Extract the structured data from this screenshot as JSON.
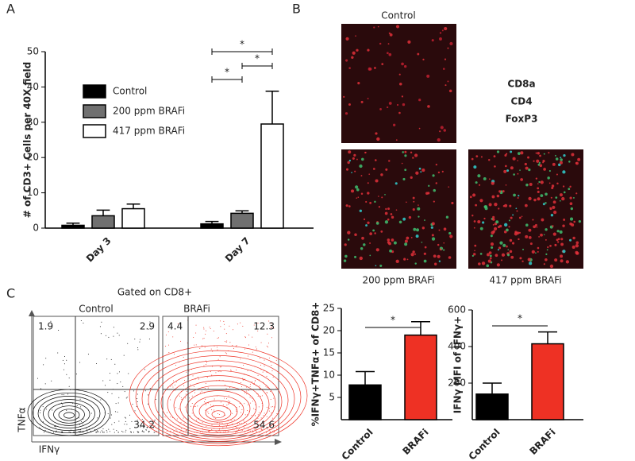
{
  "panel_labels": [
    "A",
    "B",
    "C"
  ],
  "chart_data": [
    {
      "type": "bar",
      "ylabel": "# of CD3+ Cells per 40X field",
      "categories": [
        "Day 3",
        "Day 7"
      ],
      "series": [
        {
          "name": "Control",
          "color": "#000000",
          "values": [
            0.8,
            1.2
          ],
          "errors": [
            0.6,
            0.7
          ]
        },
        {
          "name": "200 ppm BRAFi",
          "color": "#707070",
          "values": [
            3.5,
            4.2
          ],
          "errors": [
            1.6,
            0.7
          ]
        },
        {
          "name": "417 ppm BRAFi",
          "color": "#ffffff",
          "values": [
            5.5,
            29.5
          ],
          "errors": [
            1.3,
            9.3
          ]
        }
      ],
      "ylim": [
        0,
        50
      ],
      "yticks": [
        0,
        10,
        20,
        30,
        40,
        50
      ],
      "annotations": [
        "*",
        "*",
        "*"
      ]
    },
    {
      "type": "bar",
      "ylabel": "%IFNγ+TNFα+ of CD8+",
      "categories": [
        "Control",
        "BRAFi"
      ],
      "colors": [
        "#000000",
        "#ee3124"
      ],
      "values": [
        7.8,
        19
      ],
      "errors": [
        3,
        3
      ],
      "ylim": [
        0,
        25
      ],
      "yticks": [
        5,
        10,
        15,
        20,
        25
      ],
      "annotations": [
        "*"
      ]
    },
    {
      "type": "bar",
      "ylabel": "IFNγ MFI of IFNγ+",
      "categories": [
        "Control",
        "BRAFi"
      ],
      "colors": [
        "#000000",
        "#ee3124"
      ],
      "values": [
        140,
        415
      ],
      "errors": [
        60,
        65
      ],
      "ylim": [
        0,
        600
      ],
      "yticks": [
        200,
        400,
        600
      ],
      "annotations": [
        "*"
      ]
    }
  ],
  "microscopy": {
    "titles": [
      "Control",
      "200 ppm BRAFi",
      "417 ppm BRAFi"
    ],
    "legend": [
      {
        "label": "CD8a",
        "color": "#e8202a"
      },
      {
        "label": "CD4",
        "color": "#3cb54a"
      },
      {
        "label": "FoxP3",
        "color": "#2b3f98"
      }
    ]
  },
  "flow": {
    "gate": "Gated on CD8+",
    "x_label": "IFNγ",
    "y_label": "TNFα",
    "plots": [
      {
        "title": "Control",
        "color": "#000000",
        "quadrants": [
          1.9,
          2.9,
          34.2
        ]
      },
      {
        "title": "BRAFi",
        "color": "#ee3124",
        "quadrants": [
          4.4,
          12.3,
          54.6
        ]
      }
    ]
  }
}
